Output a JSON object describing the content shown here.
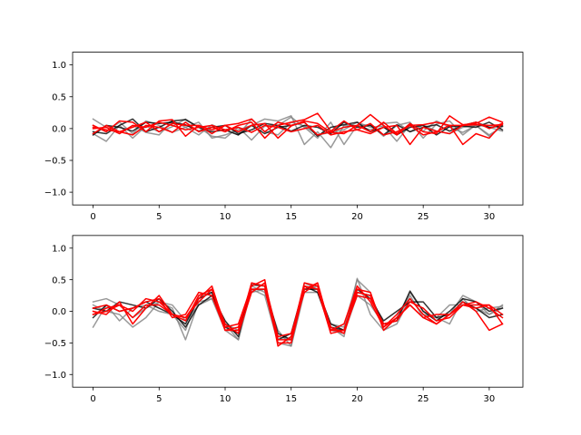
{
  "chart_data": [
    {
      "type": "line",
      "title": "",
      "xlabel": "",
      "ylabel": "",
      "xlim": [
        -1.55,
        32.55
      ],
      "ylim": [
        -1.2,
        1.2
      ],
      "xticks": [
        0,
        5,
        10,
        15,
        20,
        25,
        30
      ],
      "xtick_labels": [
        "0",
        "5",
        "10",
        "15",
        "20",
        "25",
        "30"
      ],
      "yticks": [
        -1.0,
        -0.5,
        0.0,
        0.5,
        1.0
      ],
      "ytick_labels": [
        "−1.0",
        "−0.5",
        "0.0",
        "0.5",
        "1.0"
      ],
      "grid": false,
      "legend": "none",
      "x": [
        0,
        1,
        2,
        3,
        4,
        5,
        6,
        7,
        8,
        9,
        10,
        11,
        12,
        13,
        14,
        15,
        16,
        17,
        18,
        19,
        20,
        21,
        22,
        23,
        24,
        25,
        26,
        27,
        28,
        29,
        30,
        31
      ],
      "series": [
        {
          "color": "#7f7f7f",
          "values": [
            0.15,
            0.02,
            -0.08,
            0.05,
            -0.06,
            -0.1,
            0.12,
            0.02,
            0.1,
            -0.15,
            -0.1,
            -0.02,
            0.05,
            0.15,
            0.12,
            0.2,
            -0.25,
            -0.05,
            -0.3,
            0.05,
            0.04,
            -0.02,
            0.08,
            0.1,
            -0.05,
            0.06,
            -0.04,
            -0.08,
            0.02,
            0.05,
            -0.12,
            0.04
          ]
        },
        {
          "color": "#7f7f7f",
          "values": [
            -0.08,
            -0.2,
            0.05,
            -0.15,
            0.04,
            -0.05,
            0.03,
            0.15,
            0.02,
            -0.12,
            -0.15,
            0.02,
            -0.18,
            0.04,
            0.05,
            0.18,
            0.02,
            -0.15,
            0.1,
            -0.25,
            0.05,
            0.06,
            -0.12,
            0.05,
            0.1,
            -0.15,
            0.07,
            0.12,
            -0.1,
            0.06,
            0.02,
            -0.04
          ]
        },
        {
          "color": "#7f7f7f",
          "values": [
            0.05,
            -0.05,
            0.1,
            -0.08,
            0.12,
            0.05,
            -0.06,
            0.02,
            -0.1,
            0.06,
            -0.02,
            -0.1,
            0.15,
            -0.05,
            -0.1,
            0.1,
            0.04,
            -0.1,
            -0.06,
            -0.02,
            0.1,
            0.02,
            0.04,
            -0.2,
            0.06,
            -0.04,
            0.12,
            0.02,
            -0.06,
            0.05,
            -0.1,
            0.03
          ]
        },
        {
          "color": "#000000",
          "values": [
            -0.05,
            -0.08,
            0.05,
            0.15,
            -0.05,
            0.02,
            0.12,
            0.14,
            0.02,
            -0.05,
            -0.02,
            -0.1,
            0.05,
            -0.08,
            0.02,
            0.05,
            0.1,
            -0.12,
            0.02,
            0.06,
            0.1,
            -0.05,
            0.02,
            -0.1,
            0.02,
            0.05,
            -0.1,
            0.03,
            0.04,
            0.02,
            0.1,
            -0.02
          ]
        },
        {
          "color": "#000000",
          "values": [
            -0.1,
            0.05,
            0.02,
            -0.04,
            0.1,
            0.08,
            0.1,
            0.06,
            -0.04,
            0.02,
            0.05,
            -0.08,
            -0.02,
            0.08,
            0.05,
            -0.04,
            0.05,
            0.02,
            -0.08,
            0.1,
            0.02,
            0.05,
            -0.1,
            0.06,
            -0.05,
            0.02,
            0.06,
            -0.04,
            0.05,
            0.1,
            0.02,
            0.04
          ]
        },
        {
          "color": "#ff0000",
          "values": [
            0.05,
            -0.05,
            0.12,
            0.1,
            -0.05,
            0.12,
            0.14,
            -0.12,
            0.05,
            -0.08,
            0.05,
            0.08,
            0.15,
            -0.05,
            0.1,
            0.05,
            0.1,
            -0.1,
            -0.05,
            0.02,
            0.05,
            -0.05,
            0.1,
            -0.08,
            0.05,
            0.06,
            0.1,
            0.05,
            -0.25,
            -0.08,
            -0.15,
            0.08
          ]
        },
        {
          "color": "#ff0000",
          "values": [
            -0.08,
            0.05,
            -0.05,
            0.02,
            0.1,
            -0.05,
            0.08,
            0.05,
            0.05,
            -0.02,
            0.05,
            -0.05,
            0.05,
            0.08,
            -0.15,
            0.04,
            0.12,
            0.08,
            -0.06,
            -0.08,
            0.05,
            0.22,
            0.05,
            -0.1,
            0.08,
            -0.05,
            -0.08,
            0.2,
            0.06,
            0.08,
            0.18,
            0.1
          ]
        },
        {
          "color": "#ff0000",
          "values": [
            0.02,
            -0.02,
            -0.05,
            -0.1,
            0.05,
            0.02,
            -0.06,
            0.1,
            -0.05,
            0.02,
            -0.05,
            0.05,
            0.1,
            -0.15,
            0.05,
            0.1,
            0.14,
            0.24,
            -0.04,
            0.12,
            -0.02,
            0.08,
            -0.1,
            -0.05,
            0.05,
            -0.1,
            -0.05,
            0.05,
            0.05,
            0.06,
            0.05,
            0.06
          ]
        },
        {
          "color": "#ff0000",
          "values": [
            0.0,
            0.02,
            -0.08,
            0.05,
            0.02,
            0.1,
            0.05,
            -0.02,
            0.02,
            0.05,
            -0.02,
            0.02,
            -0.06,
            0.05,
            0.02,
            -0.05,
            0.0,
            0.05,
            -0.1,
            -0.05,
            -0.02,
            -0.08,
            0.02,
            0.05,
            -0.25,
            0.02,
            -0.04,
            -0.08,
            0.05,
            0.1,
            0.0,
            0.08
          ]
        }
      ]
    },
    {
      "type": "line",
      "title": "",
      "xlabel": "",
      "ylabel": "",
      "xlim": [
        -1.55,
        32.55
      ],
      "ylim": [
        -1.2,
        1.2
      ],
      "xticks": [
        0,
        5,
        10,
        15,
        20,
        25,
        30
      ],
      "xtick_labels": [
        "0",
        "5",
        "10",
        "15",
        "20",
        "25",
        "30"
      ],
      "yticks": [
        -1.0,
        -0.5,
        0.0,
        0.5,
        1.0
      ],
      "ytick_labels": [
        "−1.0",
        "−0.5",
        "0.0",
        "0.5",
        "1.0"
      ],
      "grid": false,
      "legend": "none",
      "x": [
        0,
        1,
        2,
        3,
        4,
        5,
        6,
        7,
        8,
        9,
        10,
        11,
        12,
        13,
        14,
        15,
        16,
        17,
        18,
        19,
        20,
        21,
        22,
        23,
        24,
        25,
        26,
        27,
        28,
        29,
        30,
        31
      ],
      "series": [
        {
          "color": "#7f7f7f",
          "values": [
            0.15,
            0.2,
            0.1,
            -0.1,
            0.05,
            0.15,
            0.05,
            -0.45,
            0.15,
            0.2,
            -0.3,
            -0.45,
            0.35,
            0.25,
            -0.5,
            -0.55,
            0.3,
            0.3,
            -0.3,
            -0.35,
            0.25,
            0.1,
            -0.2,
            -0.15,
            0.25,
            -0.1,
            -0.2,
            -0.05,
            0.25,
            0.15,
            -0.05,
            0.1
          ]
        },
        {
          "color": "#7f7f7f",
          "values": [
            -0.25,
            0.1,
            -0.15,
            0.05,
            0.1,
            0.0,
            -0.05,
            -0.3,
            0.25,
            0.3,
            -0.2,
            -0.45,
            0.4,
            0.3,
            -0.3,
            -0.55,
            0.35,
            0.4,
            -0.25,
            -0.4,
            0.52,
            -0.05,
            -0.3,
            -0.1,
            0.3,
            0.0,
            -0.1,
            0.1,
            0.1,
            0.05,
            -0.05,
            0.05
          ]
        },
        {
          "color": "#7f7f7f",
          "values": [
            0.1,
            0.0,
            -0.05,
            -0.25,
            -0.1,
            0.15,
            0.1,
            -0.15,
            0.1,
            0.2,
            -0.2,
            -0.3,
            0.3,
            0.35,
            -0.4,
            -0.45,
            0.45,
            0.35,
            -0.2,
            -0.25,
            0.5,
            0.3,
            -0.3,
            -0.2,
            0.2,
            -0.05,
            -0.1,
            -0.2,
            0.2,
            0.0,
            0.05,
            0.08
          ]
        },
        {
          "color": "#000000",
          "values": [
            0.05,
            0.0,
            0.15,
            0.1,
            0.05,
            0.2,
            0.0,
            -0.25,
            0.1,
            0.25,
            -0.15,
            -0.4,
            0.42,
            0.4,
            -0.35,
            -0.45,
            0.35,
            0.35,
            -0.2,
            -0.3,
            0.3,
            0.25,
            -0.2,
            -0.15,
            0.32,
            0.0,
            -0.15,
            0.0,
            0.2,
            0.15,
            0.0,
            0.05
          ]
        },
        {
          "color": "#000000",
          "values": [
            -0.1,
            0.1,
            0.0,
            0.05,
            0.15,
            0.05,
            -0.05,
            -0.2,
            0.2,
            0.3,
            -0.25,
            -0.35,
            0.35,
            0.35,
            -0.45,
            -0.35,
            0.4,
            0.3,
            -0.25,
            -0.3,
            0.35,
            0.2,
            -0.15,
            0.0,
            0.15,
            0.15,
            -0.1,
            -0.05,
            0.15,
            0.05,
            -0.1,
            -0.05
          ]
        },
        {
          "color": "#ff0000",
          "values": [
            0.0,
            -0.05,
            0.15,
            -0.2,
            0.05,
            0.25,
            -0.05,
            -0.1,
            0.2,
            0.4,
            -0.25,
            -0.2,
            0.4,
            0.5,
            -0.55,
            -0.4,
            0.45,
            0.4,
            -0.25,
            -0.35,
            0.3,
            0.25,
            -0.25,
            -0.1,
            0.1,
            -0.1,
            -0.05,
            -0.05,
            0.15,
            0.0,
            -0.3,
            -0.2
          ]
        },
        {
          "color": "#ff0000",
          "values": [
            -0.05,
            0.05,
            0.1,
            -0.1,
            0.1,
            0.1,
            -0.05,
            -0.15,
            0.25,
            0.35,
            -0.2,
            -0.35,
            0.3,
            0.45,
            -0.4,
            -0.35,
            0.3,
            0.45,
            -0.3,
            -0.2,
            0.4,
            0.15,
            -0.25,
            -0.05,
            0.2,
            -0.05,
            -0.2,
            -0.05,
            0.1,
            0.15,
            0.05,
            -0.1
          ]
        },
        {
          "color": "#ff0000",
          "values": [
            0.05,
            0.1,
            0.0,
            0.05,
            0.15,
            0.2,
            -0.1,
            -0.05,
            0.3,
            0.25,
            -0.3,
            -0.3,
            0.45,
            0.4,
            -0.45,
            -0.45,
            0.4,
            0.35,
            -0.35,
            -0.3,
            0.25,
            0.2,
            -0.2,
            -0.15,
            0.15,
            0.05,
            -0.15,
            -0.1,
            0.1,
            0.05,
            0.1,
            -0.05
          ]
        },
        {
          "color": "#ff0000",
          "values": [
            -0.05,
            0.0,
            0.1,
            0.0,
            0.2,
            0.15,
            -0.05,
            -0.1,
            0.15,
            0.35,
            -0.3,
            -0.25,
            0.35,
            0.35,
            -0.5,
            -0.5,
            0.35,
            0.45,
            -0.3,
            -0.3,
            0.35,
            0.3,
            -0.3,
            -0.1,
            0.1,
            -0.1,
            -0.2,
            -0.05,
            0.1,
            0.1,
            0.1,
            -0.2
          ]
        }
      ]
    }
  ]
}
